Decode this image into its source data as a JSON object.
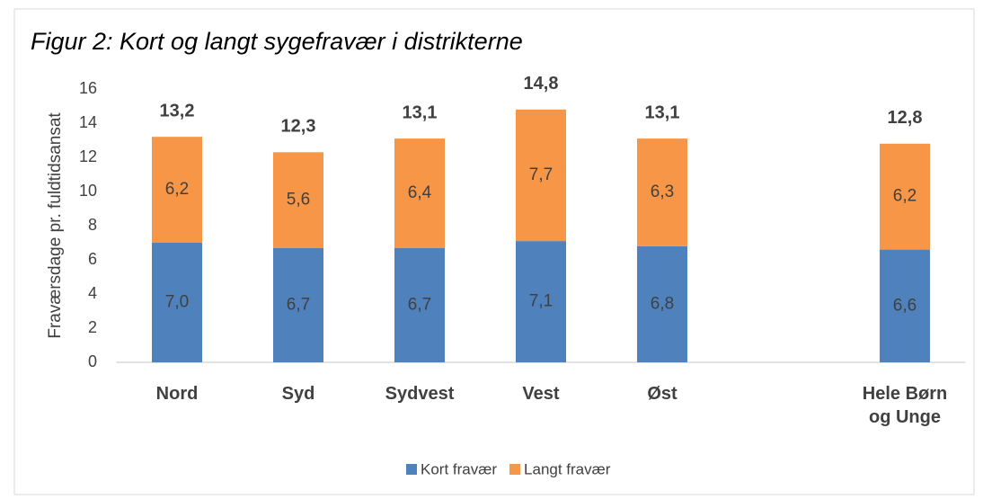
{
  "chart_data": {
    "type": "stacked_bar",
    "title": "Figur 2: Kort og langt sygefravær i distrikterne",
    "y_label": "Fraværsdage pr. fuldtidsansat",
    "categories": [
      "Nord",
      "Syd",
      "Sydvest",
      "Vest",
      "Øst",
      null,
      "Hele Børn og Unge"
    ],
    "series": [
      {
        "name": "Kort fravær",
        "color": "#4f81bd",
        "values": [
          7.0,
          6.7,
          6.7,
          7.1,
          6.8,
          null,
          6.6
        ],
        "value_labels": [
          "7,0",
          "6,7",
          "6,7",
          "7,1",
          "6,8",
          null,
          "6,6"
        ]
      },
      {
        "name": "Langt fravær",
        "color": "#f79646",
        "values": [
          6.2,
          5.6,
          6.4,
          7.7,
          6.3,
          null,
          6.2
        ],
        "value_labels": [
          "6,2",
          "5,6",
          "6,4",
          "7,7",
          "6,3",
          null,
          "6,2"
        ]
      }
    ],
    "totals": [
      13.2,
      12.3,
      13.1,
      14.8,
      13.1,
      null,
      12.8
    ],
    "total_labels": [
      "13,2",
      "12,3",
      "13,1",
      "14,8",
      "13,1",
      null,
      "12,8"
    ],
    "ylim": [
      0,
      16
    ],
    "yticks": [
      0,
      2,
      4,
      6,
      8,
      10,
      12,
      14,
      16
    ],
    "grid": false,
    "legend": "bottom"
  }
}
